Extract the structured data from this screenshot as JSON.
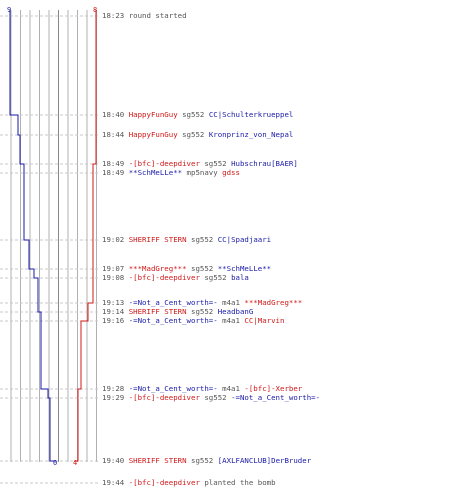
{
  "colors": {
    "blue_team": "#1a1aa8",
    "red_team": "#d01818",
    "neutral": "#555555",
    "grid": "#b0b0b0"
  },
  "scores": {
    "blue_start": "9",
    "red_start": "8",
    "blue_end": "0",
    "red_end": "4"
  },
  "events": [
    {
      "time": "18:23",
      "parts": [
        {
          "text": "round started",
          "cls": "plain"
        }
      ]
    },
    {
      "time": "18:40",
      "parts": [
        {
          "text": "HappyFunGuy",
          "cls": "red"
        },
        {
          "text": " sg552 ",
          "cls": "plain"
        },
        {
          "text": "CC|Schulterkrueppel",
          "cls": "blue"
        }
      ]
    },
    {
      "time": "18:44",
      "parts": [
        {
          "text": "HappyFunGuy",
          "cls": "red"
        },
        {
          "text": " sg552 ",
          "cls": "plain"
        },
        {
          "text": "Kronprinz_von_Nepal",
          "cls": "blue"
        }
      ]
    },
    {
      "time": "18:49",
      "parts": [
        {
          "text": "-[bfc]-deepdiver",
          "cls": "red"
        },
        {
          "text": " sg552 ",
          "cls": "plain"
        },
        {
          "text": "Hubschrau[BAER]",
          "cls": "blue"
        }
      ]
    },
    {
      "time": "18:49",
      "parts": [
        {
          "text": "**SchMeLLe**",
          "cls": "blue"
        },
        {
          "text": " mp5navy ",
          "cls": "plain"
        },
        {
          "text": "gdss",
          "cls": "red"
        }
      ]
    },
    {
      "time": "19:02",
      "parts": [
        {
          "text": "SHERIFF STERN",
          "cls": "red"
        },
        {
          "text": " sg552 ",
          "cls": "plain"
        },
        {
          "text": "CC|Spadjaari",
          "cls": "blue"
        }
      ]
    },
    {
      "time": "19:07",
      "parts": [
        {
          "text": "***MadGreg***",
          "cls": "red"
        },
        {
          "text": " sg552 ",
          "cls": "plain"
        },
        {
          "text": "**SchMeLLe**",
          "cls": "blue"
        }
      ]
    },
    {
      "time": "19:08",
      "parts": [
        {
          "text": "-[bfc]-deepdiver",
          "cls": "red"
        },
        {
          "text": " sg552 ",
          "cls": "plain"
        },
        {
          "text": "bala",
          "cls": "blue"
        }
      ]
    },
    {
      "time": "19:13",
      "parts": [
        {
          "text": "-=Not_a_Cent_worth=-",
          "cls": "blue"
        },
        {
          "text": " m4a1 ",
          "cls": "plain"
        },
        {
          "text": "***MadGreg***",
          "cls": "red"
        }
      ]
    },
    {
      "time": "19:14",
      "parts": [
        {
          "text": "SHERIFF STERN",
          "cls": "red"
        },
        {
          "text": " sg552 ",
          "cls": "plain"
        },
        {
          "text": "HeadbanG",
          "cls": "blue"
        }
      ]
    },
    {
      "time": "19:16",
      "parts": [
        {
          "text": "-=Not_a_Cent_worth=-",
          "cls": "blue"
        },
        {
          "text": " m4a1 ",
          "cls": "plain"
        },
        {
          "text": "CC|Marvin",
          "cls": "red"
        }
      ]
    },
    {
      "time": "19:28",
      "parts": [
        {
          "text": "-=Not_a_Cent_worth=-",
          "cls": "blue"
        },
        {
          "text": " m4a1 ",
          "cls": "plain"
        },
        {
          "text": "-[bfc]-Xerber",
          "cls": "red"
        }
      ]
    },
    {
      "time": "19:29",
      "parts": [
        {
          "text": "-[bfc]-deepdiver",
          "cls": "red"
        },
        {
          "text": " sg552 ",
          "cls": "plain"
        },
        {
          "text": "-=Not_a_Cent_worth=-",
          "cls": "blue"
        }
      ]
    },
    {
      "time": "19:40",
      "parts": [
        {
          "text": "SHERIFF STERN",
          "cls": "red"
        },
        {
          "text": " sg552 ",
          "cls": "plain"
        },
        {
          "text": "[AXLFANCLUB]DerBruder",
          "cls": "blue"
        }
      ]
    },
    {
      "time": "19:44",
      "parts": [
        {
          "text": "-[bfc]-deepdiver",
          "cls": "red"
        },
        {
          "text": " planted the bomb",
          "cls": "plain"
        }
      ]
    }
  ]
}
